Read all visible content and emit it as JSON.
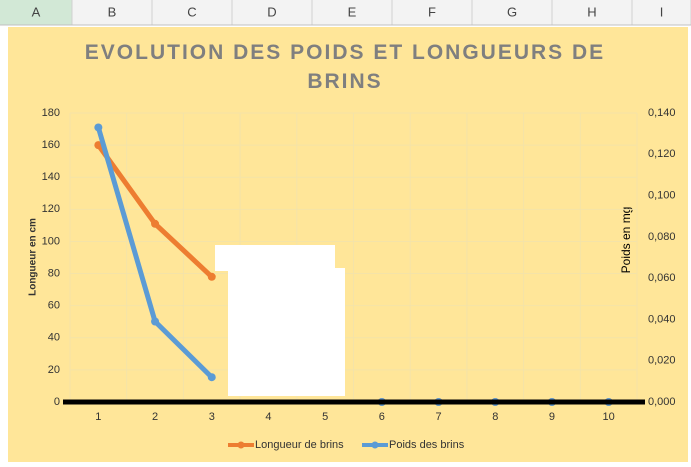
{
  "spreadsheet": {
    "columns": [
      "A",
      "B",
      "C",
      "D",
      "E",
      "F",
      "G",
      "H",
      "I"
    ]
  },
  "chart_data": {
    "type": "line",
    "title": "EVOLUTION DES POIDS ET LONGUEURS DE BRINS",
    "y_label": "Longueur en cm",
    "y2_label": "Poids en mg",
    "categories": [
      "1",
      "2",
      "3",
      "4",
      "5",
      "6",
      "7",
      "8",
      "9",
      "10"
    ],
    "ylim": [
      0,
      180
    ],
    "yticks": [
      0,
      20,
      40,
      60,
      80,
      100,
      120,
      140,
      160,
      180
    ],
    "y2lim": [
      0,
      0.14
    ],
    "y2ticks": [
      {
        "value": 0,
        "label": "0,000"
      },
      {
        "value": 0.02,
        "label": "0,020"
      },
      {
        "value": 0.04,
        "label": "0,040"
      },
      {
        "value": 0.06,
        "label": "0,060"
      },
      {
        "value": 0.08,
        "label": "0,080"
      },
      {
        "value": 0.1,
        "label": "0,100"
      },
      {
        "value": 0.12,
        "label": "0,120"
      },
      {
        "value": 0.14,
        "label": "0,140"
      }
    ],
    "grid": true,
    "legend": "bottom",
    "series": [
      {
        "name": "Longueur de brins",
        "color": "#ED7D31",
        "values": [
          160,
          111,
          78,
          null,
          null,
          0,
          0,
          0,
          0,
          0
        ]
      },
      {
        "name": "Poids des brins",
        "color": "#5B9BD5",
        "axis": "y2",
        "values": [
          0.133,
          0.039,
          0.012,
          null,
          null,
          0,
          0,
          0,
          0,
          0
        ]
      }
    ]
  }
}
